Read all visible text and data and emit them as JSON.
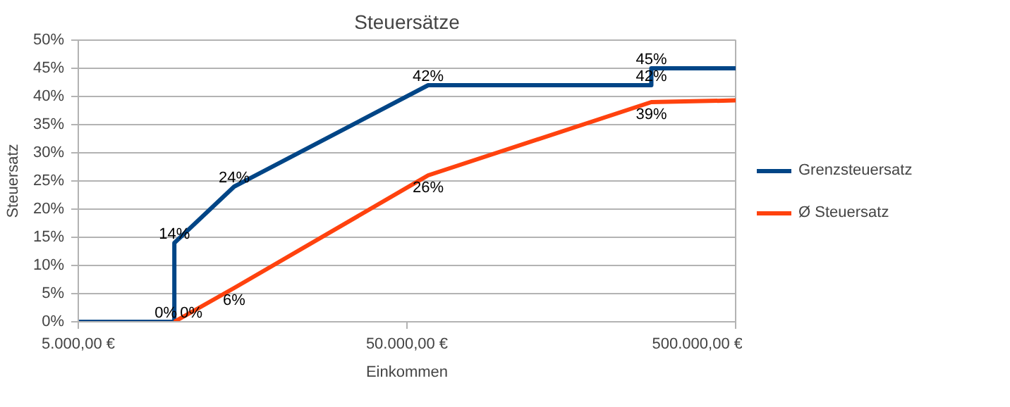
{
  "chart_data": {
    "type": "line",
    "title": "Steuersätze",
    "xlabel": "Einkommen",
    "ylabel": "Steuersatz",
    "log": "x",
    "xlim": [
      5000,
      500000
    ],
    "xticks": [
      {
        "value": 5000,
        "label": "5.000,00 €"
      },
      {
        "value": 50000,
        "label": "50.000,00 €"
      },
      {
        "value": 500000,
        "label": "500.000,00 €"
      }
    ],
    "ylim": [
      0,
      50
    ],
    "yticks": [
      {
        "value": 0,
        "label": "0%"
      },
      {
        "value": 5,
        "label": "5%"
      },
      {
        "value": 10,
        "label": "10%"
      },
      {
        "value": 15,
        "label": "15%"
      },
      {
        "value": 20,
        "label": "20%"
      },
      {
        "value": 25,
        "label": "25%"
      },
      {
        "value": 30,
        "label": "30%"
      },
      {
        "value": 35,
        "label": "35%"
      },
      {
        "value": 40,
        "label": "40%"
      },
      {
        "value": 45,
        "label": "45%"
      },
      {
        "value": 50,
        "label": "50%"
      }
    ],
    "grid": "y",
    "legend": "right",
    "marker": "none",
    "line_style": "solid",
    "series": [
      {
        "name": "Grenzsteuersatz",
        "color": "#004586",
        "x": [
          5000,
          9800,
          9800,
          14900,
          58000,
          277000,
          277000,
          500000
        ],
        "values": [
          0,
          0,
          14,
          24,
          42,
          42,
          45,
          45
        ],
        "value_labels": [
          null,
          "0%",
          "14%",
          "24%",
          "42%",
          "42%",
          "45%",
          null
        ]
      },
      {
        "name": "Ø Steuersatz",
        "color": "#ff420e",
        "x": [
          9800,
          14900,
          58000,
          277000,
          500000
        ],
        "values": [
          0,
          6,
          26,
          39,
          39.3
        ],
        "value_labels": [
          "0%",
          "6%",
          "26%",
          "39%",
          null
        ]
      }
    ]
  }
}
